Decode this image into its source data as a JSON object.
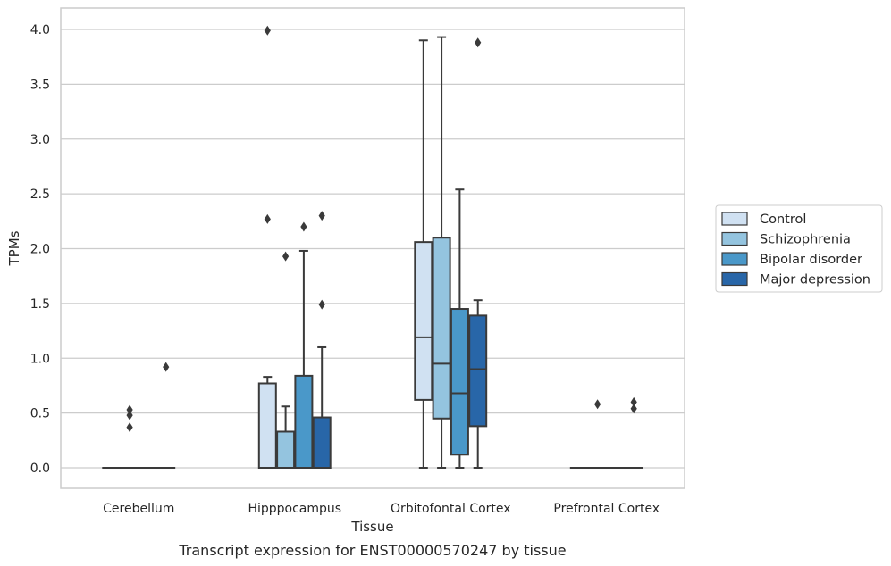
{
  "chart_data": {
    "type": "box",
    "xlabel": "Tissue",
    "ylabel": "TPMs",
    "caption": "Transcript expression for ENST00000570247 by tissue",
    "ylim": [
      -0.2,
      4.2
    ],
    "y_ticks": [
      "0.0",
      "0.5",
      "1.0",
      "1.5",
      "2.0",
      "2.5",
      "3.0",
      "3.5",
      "4.0"
    ],
    "grid": "horizontal",
    "legend_position": "right",
    "categories": [
      "Cerebellum",
      "Hipppocampus",
      "Orbitofontal Cortex",
      "Prefrontal Cortex"
    ],
    "series": [
      {
        "name": "Control",
        "color": "#d0e1f2",
        "boxes": [
          {
            "min": 0,
            "q1": 0,
            "median": 0,
            "q3": 0,
            "max": 0,
            "outliers": []
          },
          {
            "min": 0,
            "q1": 0,
            "median": 0,
            "q3": 0.77,
            "max": 0.83,
            "outliers": [
              2.27,
              3.99
            ]
          },
          {
            "min": 0,
            "q1": 0.62,
            "median": 1.19,
            "q3": 2.06,
            "max": 3.9,
            "outliers": []
          },
          {
            "min": 0,
            "q1": 0,
            "median": 0,
            "q3": 0,
            "max": 0,
            "outliers": []
          }
        ]
      },
      {
        "name": "Schizophrenia",
        "color": "#94c4df",
        "boxes": [
          {
            "min": 0,
            "q1": 0,
            "median": 0,
            "q3": 0,
            "max": 0,
            "outliers": [
              0.37,
              0.48,
              0.53
            ]
          },
          {
            "min": 0,
            "q1": 0,
            "median": 0,
            "q3": 0.33,
            "max": 0.56,
            "outliers": [
              1.93
            ]
          },
          {
            "min": 0,
            "q1": 0.45,
            "median": 0.95,
            "q3": 2.1,
            "max": 3.93,
            "outliers": []
          },
          {
            "min": 0,
            "q1": 0,
            "median": 0,
            "q3": 0,
            "max": 0,
            "outliers": [
              0.58
            ]
          }
        ]
      },
      {
        "name": "Bipolar disorder",
        "color": "#4a98c9",
        "boxes": [
          {
            "min": 0,
            "q1": 0,
            "median": 0,
            "q3": 0,
            "max": 0,
            "outliers": []
          },
          {
            "min": 0,
            "q1": 0,
            "median": 0,
            "q3": 0.84,
            "max": 1.98,
            "outliers": [
              2.2
            ]
          },
          {
            "min": 0,
            "q1": 0.12,
            "median": 0.68,
            "q3": 1.45,
            "max": 2.54,
            "outliers": []
          },
          {
            "min": 0,
            "q1": 0,
            "median": 0,
            "q3": 0,
            "max": 0,
            "outliers": []
          }
        ]
      },
      {
        "name": "Major depression",
        "color": "#2866a8",
        "boxes": [
          {
            "min": 0,
            "q1": 0,
            "median": 0,
            "q3": 0,
            "max": 0,
            "outliers": [
              0.92
            ]
          },
          {
            "min": 0,
            "q1": 0,
            "median": 0,
            "q3": 0.46,
            "max": 1.1,
            "outliers": [
              1.49,
              2.3
            ]
          },
          {
            "min": 0,
            "q1": 0.38,
            "median": 0.9,
            "q3": 1.39,
            "max": 1.53,
            "outliers": [
              3.88
            ]
          },
          {
            "min": 0,
            "q1": 0,
            "median": 0,
            "q3": 0,
            "max": 0,
            "outliers": [
              0.54,
              0.6
            ]
          }
        ]
      }
    ]
  }
}
